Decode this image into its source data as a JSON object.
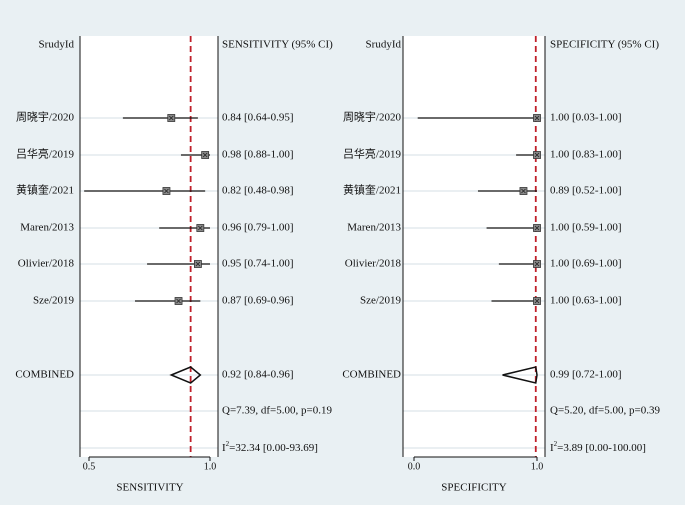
{
  "chart_data": [
    {
      "type": "forest",
      "column_header_left": "SrudyId",
      "column_header_right": "SENSITIVITY (95% CI)",
      "xlabel": "SENSITIVITY",
      "xlim": [
        0.5,
        1.0
      ],
      "ticks": [
        {
          "value": 0.5,
          "label": "0.5"
        },
        {
          "value": 1.0,
          "label": "1.0"
        }
      ],
      "reference_line": 0.92,
      "studies": [
        {
          "label": "周晓宇/2020",
          "estimate": 0.84,
          "lower": 0.64,
          "upper": 0.95,
          "ci_text": "0.84 [0.64-0.95]"
        },
        {
          "label": "吕华亮/2019",
          "estimate": 0.98,
          "lower": 0.88,
          "upper": 1.0,
          "ci_text": "0.98 [0.88-1.00]"
        },
        {
          "label": "黄镇奎/2021",
          "estimate": 0.82,
          "lower": 0.48,
          "upper": 0.98,
          "ci_text": "0.82 [0.48-0.98]"
        },
        {
          "label": "Maren/2013",
          "estimate": 0.96,
          "lower": 0.79,
          "upper": 1.0,
          "ci_text": "0.96 [0.79-1.00]"
        },
        {
          "label": "Olivier/2018",
          "estimate": 0.95,
          "lower": 0.74,
          "upper": 1.0,
          "ci_text": "0.95 [0.74-1.00]"
        },
        {
          "label": "Sze/2019",
          "estimate": 0.87,
          "lower": 0.69,
          "upper": 0.96,
          "ci_text": "0.87 [0.69-0.96]"
        }
      ],
      "combined": {
        "label": "COMBINED",
        "estimate": 0.92,
        "lower": 0.84,
        "upper": 0.96,
        "ci_text": "0.92 [0.84-0.96]"
      },
      "heterogeneity_q": "Q=7.39, df=5.00, p=0.19",
      "heterogeneity_i2_prefix": "I",
      "heterogeneity_i2_sup": "2",
      "heterogeneity_i2_rest": "=32.34 [0.00-93.69]"
    },
    {
      "type": "forest",
      "column_header_left": "SrudyId",
      "column_header_right": "SPECIFICITY (95% CI)",
      "xlabel": "SPECIFICITY",
      "xlim": [
        0.0,
        1.0
      ],
      "ticks": [
        {
          "value": 0.0,
          "label": "0.0"
        },
        {
          "value": 1.0,
          "label": "1.0"
        }
      ],
      "reference_line": 0.99,
      "studies": [
        {
          "label": "周晓宇/2020",
          "estimate": 1.0,
          "lower": 0.03,
          "upper": 1.0,
          "ci_text": "1.00 [0.03-1.00]"
        },
        {
          "label": "吕华亮/2019",
          "estimate": 1.0,
          "lower": 0.83,
          "upper": 1.0,
          "ci_text": "1.00 [0.83-1.00]"
        },
        {
          "label": "黄镇奎/2021",
          "estimate": 0.89,
          "lower": 0.52,
          "upper": 1.0,
          "ci_text": "0.89 [0.52-1.00]"
        },
        {
          "label": "Maren/2013",
          "estimate": 1.0,
          "lower": 0.59,
          "upper": 1.0,
          "ci_text": "1.00 [0.59-1.00]"
        },
        {
          "label": "Olivier/2018",
          "estimate": 1.0,
          "lower": 0.69,
          "upper": 1.0,
          "ci_text": "1.00 [0.69-1.00]"
        },
        {
          "label": "Sze/2019",
          "estimate": 1.0,
          "lower": 0.63,
          "upper": 1.0,
          "ci_text": "1.00 [0.63-1.00]"
        }
      ],
      "combined": {
        "label": "COMBINED",
        "estimate": 0.99,
        "lower": 0.72,
        "upper": 1.0,
        "ci_text": "0.99 [0.72-1.00]"
      },
      "heterogeneity_q": "Q=5.20, df=5.00, p=0.39",
      "heterogeneity_i2_prefix": "I",
      "heterogeneity_i2_sup": "2",
      "heterogeneity_i2_rest": "=3.89 [0.00-100.00]"
    }
  ],
  "colors": {
    "background": "#e9f0f3",
    "plot_background": "#ffffff",
    "reference_line": "#c0202a",
    "ci_line": "#111111",
    "marker_fill": "#8a8a8a",
    "row_gridline": "#d4dfe4"
  }
}
